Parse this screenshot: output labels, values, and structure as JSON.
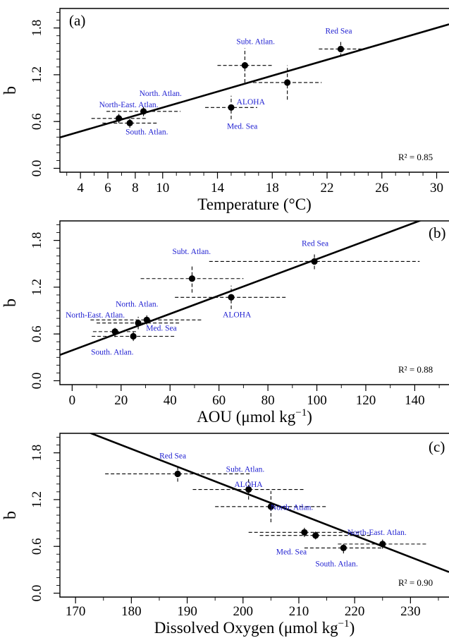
{
  "chart_data": [
    {
      "type": "scatter",
      "panel_tag": "(a)",
      "xlabel": "Temperature (°C)",
      "ylabel": "b",
      "xlim": [
        2.5,
        30.9
      ],
      "ylim": [
        -0.05,
        2.05
      ],
      "xticks": [
        4,
        6,
        8,
        10,
        14,
        18,
        22,
        26,
        30
      ],
      "yticks": [
        0.0,
        0.6,
        1.2,
        1.8
      ],
      "r2": "R² = 0.85",
      "fit": {
        "slope": 0.0511,
        "intercept": 0.268
      },
      "points": [
        {
          "label": "North-East. Atlan.",
          "x": 6.8,
          "y": 0.64,
          "xerr": 2.0,
          "yerr": 0.06
        },
        {
          "label": "South. Atlan.",
          "x": 7.6,
          "y": 0.58,
          "xerr": 2.0,
          "yerr": 0.06
        },
        {
          "label": "North. Atlan.",
          "x": 8.6,
          "y": 0.73,
          "xerr": 2.7,
          "yerr": 0.06
        },
        {
          "label": "Med. Sea",
          "x": 15.0,
          "y": 0.78,
          "xerr": 1.9,
          "yerr": 0.15
        },
        {
          "label": "Subt. Atlan.",
          "x": 16.0,
          "y": 1.32,
          "xerr": 2.0,
          "yerr": 0.22
        },
        {
          "label": "ALOHA",
          "x": 19.1,
          "y": 1.1,
          "xerr": 2.5,
          "yerr": 0.22
        },
        {
          "label": "Red Sea",
          "x": 23.0,
          "y": 1.53,
          "xerr": 1.6,
          "yerr": 0.1
        }
      ]
    },
    {
      "type": "scatter",
      "panel_tag": "(b)",
      "xlabel": "AOU (μmol kg",
      "xlabel_sup": "−1",
      "xlabel_end": ")",
      "ylabel": "b",
      "xlim": [
        -5,
        154
      ],
      "ylim": [
        -0.05,
        2.05
      ],
      "xticks": [
        0,
        20,
        40,
        60,
        80,
        100,
        120,
        140
      ],
      "yticks": [
        0.0,
        0.6,
        1.2,
        1.8
      ],
      "r2": "R² = 0.88",
      "fit": {
        "slope": 0.0117,
        "intercept": 0.39
      },
      "points": [
        {
          "label": "North-East. Atlan.",
          "x": 17.5,
          "y": 0.63,
          "xerr": 9.0,
          "yerr": 0.07
        },
        {
          "label": "South. Atlan.",
          "x": 25.0,
          "y": 0.57,
          "xerr": 17.0,
          "yerr": 0.06
        },
        {
          "label": "North. Atlan.",
          "x": 27.0,
          "y": 0.74,
          "xerr": 17.0,
          "yerr": 0.08
        },
        {
          "label": "Med. Sea",
          "x": 30.5,
          "y": 0.78,
          "xerr": 23.0,
          "yerr": 0.06
        },
        {
          "label": "Subt. Atlan.",
          "x": 49.0,
          "y": 1.31,
          "xerr": 21.0,
          "yerr": 0.18
        },
        {
          "label": "ALOHA",
          "x": 65.0,
          "y": 1.07,
          "xerr": 23.0,
          "yerr": 0.15
        },
        {
          "label": "Red Sea",
          "x": 99.0,
          "y": 1.53,
          "xerr": 43.0,
          "yerr": 0.1
        }
      ]
    },
    {
      "type": "scatter",
      "panel_tag": "(c)",
      "xlabel": "Dissolved Oxygen (μmol kg",
      "xlabel_sup": "−1",
      "xlabel_end": ")",
      "ylabel": "b",
      "xlim": [
        167.2,
        236.9
      ],
      "ylim": [
        -0.05,
        2.05
      ],
      "xticks": [
        170,
        180,
        190,
        200,
        210,
        220,
        230
      ],
      "yticks": [
        0.0,
        0.6,
        1.2,
        1.8
      ],
      "r2": "R² = 0.90",
      "fit": {
        "slope": -0.02775,
        "intercept": 6.845
      },
      "points": [
        {
          "label": "Red Sea",
          "x": 188.3,
          "y": 1.53,
          "xerr": 13.0,
          "yerr": 0.1
        },
        {
          "label": "Subt. Atlan.",
          "x": 201.0,
          "y": 1.33,
          "xerr": 10.0,
          "yerr": 0.13
        },
        {
          "label": "ALOHA",
          "x": 205.0,
          "y": 1.11,
          "xerr": 10.0,
          "yerr": 0.2
        },
        {
          "label": "North. Atlan.",
          "x": 211.0,
          "y": 0.78,
          "xerr": 10.0,
          "yerr": 0.06
        },
        {
          "label": "Med. Sea",
          "x": 213.0,
          "y": 0.74,
          "xerr": 10.0,
          "yerr": 0.05
        },
        {
          "label": "North-East. Atlan.",
          "x": 225.0,
          "y": 0.63,
          "xerr": 8.0,
          "yerr": 0.06
        },
        {
          "label": "South. Atlan.",
          "x": 218.0,
          "y": 0.58,
          "xerr": 7.0,
          "yerr": 0.07
        }
      ]
    }
  ]
}
